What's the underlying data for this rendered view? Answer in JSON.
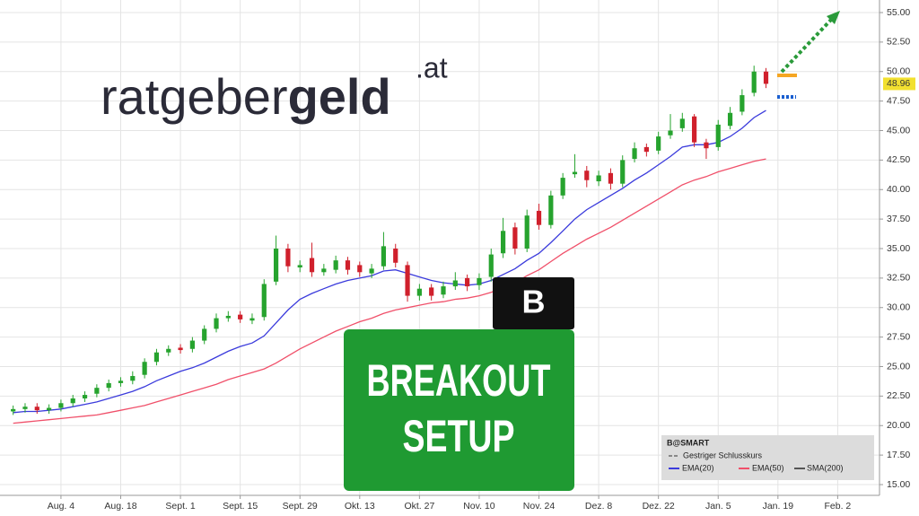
{
  "chart_data": {
    "type": "candlestick",
    "categories": [
      null,
      null,
      null,
      null,
      "Aug. 4",
      null,
      null,
      null,
      null,
      "Aug. 18",
      null,
      null,
      null,
      null,
      "Sept. 1",
      null,
      null,
      null,
      null,
      "Sept. 15",
      null,
      null,
      null,
      null,
      "Sept. 29",
      null,
      null,
      null,
      null,
      "Okt. 13",
      null,
      null,
      null,
      null,
      "Okt. 27",
      null,
      null,
      null,
      null,
      "Nov. 10",
      null,
      null,
      null,
      null,
      "Nov. 24",
      null,
      null,
      null,
      null,
      "Dez. 8",
      null,
      null,
      null,
      null,
      "Dez. 22",
      null,
      null,
      null,
      null,
      "Jan. 5",
      null,
      null,
      null,
      null,
      "Jan. 19",
      null,
      null,
      null,
      null,
      "Feb. 2",
      null,
      null,
      null
    ],
    "open": [
      21.2,
      21.4,
      21.6,
      21.3,
      21.5,
      21.9,
      22.3,
      22.7,
      23.2,
      23.6,
      23.8,
      24.3,
      25.4,
      26.2,
      26.6,
      26.5,
      27.2,
      28.2,
      29.1,
      29.4,
      28.9,
      29.2,
      32.2,
      35.0,
      33.4,
      34.2,
      33.0,
      33.2,
      34.0,
      33.6,
      32.9,
      33.5,
      35.0,
      33.6,
      31.0,
      31.7,
      31.1,
      31.8,
      32.5,
      31.9,
      32.6,
      34.6,
      36.8,
      35.0,
      38.2,
      37.0,
      39.5,
      41.3,
      41.6,
      40.7,
      41.4,
      40.5,
      42.6,
      43.6,
      43.3,
      44.6,
      45.2,
      46.2,
      44.0,
      43.6,
      45.4,
      46.6,
      48.2,
      50.0,
      null,
      null,
      null,
      null,
      null,
      null,
      null,
      null,
      null
    ],
    "high": [
      21.7,
      21.9,
      21.9,
      21.8,
      22.2,
      22.6,
      22.9,
      23.5,
      23.9,
      24.1,
      24.6,
      25.7,
      26.5,
      26.8,
      26.9,
      27.5,
      28.5,
      29.5,
      29.7,
      29.7,
      29.5,
      32.4,
      36.1,
      35.4,
      34.0,
      35.5,
      33.7,
      34.4,
      34.3,
      33.9,
      33.7,
      36.4,
      35.4,
      33.9,
      32.0,
      32.0,
      32.2,
      33.0,
      32.8,
      32.9,
      35.0,
      37.6,
      37.2,
      38.3,
      38.8,
      39.9,
      41.4,
      43.0,
      42.0,
      41.6,
      41.8,
      42.9,
      44.0,
      43.9,
      44.9,
      46.4,
      46.5,
      46.4,
      44.3,
      45.9,
      47.0,
      48.5,
      50.5,
      50.3,
      null,
      null,
      null,
      null,
      null,
      null,
      null,
      null,
      null
    ],
    "low": [
      20.9,
      21.1,
      21.0,
      21.0,
      21.2,
      21.6,
      22.0,
      22.4,
      22.9,
      23.3,
      23.5,
      24.0,
      25.1,
      25.9,
      26.1,
      26.2,
      26.9,
      27.9,
      28.8,
      28.7,
      28.6,
      28.9,
      31.9,
      33.0,
      33.0,
      32.6,
      32.7,
      32.9,
      32.8,
      32.6,
      32.5,
      33.2,
      33.4,
      30.5,
      30.6,
      30.6,
      30.8,
      31.5,
      31.4,
      31.5,
      32.2,
      34.2,
      34.5,
      34.7,
      36.6,
      36.7,
      39.2,
      41.0,
      40.2,
      40.3,
      40.0,
      40.2,
      42.3,
      42.8,
      43.0,
      44.3,
      44.9,
      43.6,
      42.6,
      43.3,
      45.1,
      46.3,
      47.9,
      48.6,
      null,
      null,
      null,
      null,
      null,
      null,
      null,
      null,
      null
    ],
    "close": [
      21.4,
      21.6,
      21.3,
      21.5,
      21.9,
      22.3,
      22.6,
      23.2,
      23.6,
      23.8,
      24.2,
      25.4,
      26.2,
      26.5,
      26.4,
      27.2,
      28.2,
      29.1,
      29.3,
      29.0,
      29.1,
      32.0,
      35.0,
      33.5,
      33.6,
      33.0,
      33.3,
      34.0,
      33.2,
      33.0,
      33.3,
      35.2,
      33.8,
      31.0,
      31.6,
      31.0,
      31.8,
      32.3,
      31.8,
      32.5,
      34.5,
      36.5,
      35.0,
      37.8,
      37.0,
      39.5,
      41.0,
      41.5,
      40.8,
      41.2,
      40.5,
      42.5,
      43.5,
      43.2,
      44.5,
      45.0,
      46.0,
      44.0,
      43.5,
      45.5,
      46.5,
      48.0,
      50.0,
      48.96,
      null,
      null,
      null,
      null,
      null,
      null,
      null,
      null,
      null
    ],
    "up_color": "#26a32e",
    "down_color": "#d0202c",
    "series": [
      {
        "name": "EMA(20)",
        "color": "#3b3bdc",
        "values": [
          21.1,
          21.2,
          21.2,
          21.3,
          21.4,
          21.6,
          21.8,
          22.0,
          22.3,
          22.6,
          22.9,
          23.3,
          23.8,
          24.2,
          24.6,
          24.9,
          25.3,
          25.8,
          26.3,
          26.7,
          27.0,
          27.6,
          28.7,
          29.8,
          30.7,
          31.2,
          31.6,
          32.0,
          32.3,
          32.5,
          32.7,
          33.1,
          33.2,
          32.9,
          32.6,
          32.3,
          32.1,
          32.0,
          31.9,
          32.0,
          32.3,
          32.8,
          33.3,
          34.0,
          34.6,
          35.5,
          36.5,
          37.5,
          38.3,
          38.9,
          39.5,
          40.1,
          40.8,
          41.4,
          42.1,
          42.8,
          43.6,
          43.8,
          43.8,
          44.0,
          44.5,
          45.2,
          46.1,
          46.7,
          null,
          null,
          null,
          null,
          null,
          null,
          null,
          null,
          null
        ]
      },
      {
        "name": "EMA(50)",
        "color": "#f0506a",
        "values": [
          20.2,
          20.3,
          20.4,
          20.5,
          20.6,
          20.7,
          20.8,
          20.9,
          21.1,
          21.3,
          21.5,
          21.7,
          22.0,
          22.3,
          22.6,
          22.9,
          23.2,
          23.5,
          23.9,
          24.2,
          24.5,
          24.8,
          25.3,
          25.9,
          26.5,
          27.0,
          27.5,
          28.0,
          28.4,
          28.8,
          29.1,
          29.5,
          29.8,
          30.0,
          30.2,
          30.4,
          30.5,
          30.7,
          30.8,
          31.0,
          31.3,
          31.7,
          32.1,
          32.7,
          33.2,
          33.9,
          34.6,
          35.2,
          35.8,
          36.3,
          36.8,
          37.4,
          38.0,
          38.6,
          39.2,
          39.8,
          40.4,
          40.8,
          41.1,
          41.5,
          41.8,
          42.1,
          42.4,
          42.6,
          null,
          null,
          null,
          null,
          null,
          null,
          null,
          null,
          null
        ]
      }
    ],
    "ylim": [
      15,
      55
    ],
    "yticks": [
      {
        "value": 15,
        "label": "15.00"
      },
      {
        "value": 17.5,
        "label": "17.50"
      },
      {
        "value": 20,
        "label": "20.00"
      },
      {
        "value": 22.5,
        "label": "22.50"
      },
      {
        "value": 25,
        "label": "25.00"
      },
      {
        "value": 27.5,
        "label": "27.50"
      },
      {
        "value": 30,
        "label": "30.00"
      },
      {
        "value": 32.5,
        "label": "32.50"
      },
      {
        "value": 35,
        "label": "35.00"
      },
      {
        "value": 37.5,
        "label": "37.50"
      },
      {
        "value": 40,
        "label": "40.00"
      },
      {
        "value": 42.5,
        "label": "42.50"
      },
      {
        "value": 45,
        "label": "45.00"
      },
      {
        "value": 47.5,
        "label": "47.50"
      },
      {
        "value": 50,
        "label": "50.00"
      },
      {
        "value": 52.5,
        "label": "52.50"
      },
      {
        "value": 55,
        "label": "55.00"
      }
    ],
    "grid": true,
    "last_price": 48.96,
    "last_price_color": "#f2e030",
    "legend": {
      "title": "B@SMART",
      "items": [
        "Gestriger Schlusskurs",
        "SMA(200)"
      ]
    },
    "logo": {
      "text": "ratgeber",
      "bold": "geld",
      "suffix": ".at"
    },
    "badge": "B",
    "banner": [
      "BREAKOUT",
      "SETUP"
    ]
  }
}
